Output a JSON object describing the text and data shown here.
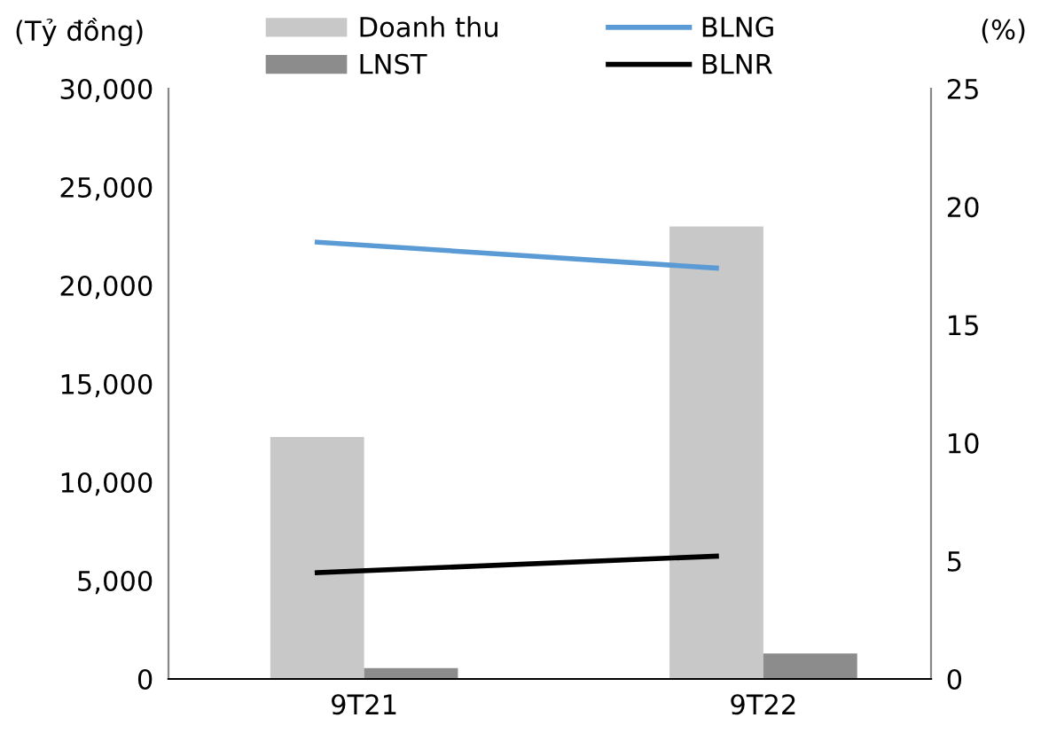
{
  "chart_data": {
    "type": "bar",
    "categories": [
      "9T21",
      "9T22"
    ],
    "ylabel": "(Tỷ đồng)",
    "y2label": "(%)",
    "series": [
      {
        "name": "Doanh thu",
        "color": "#c8c8c8",
        "values": [
          12300,
          23000
        ]
      },
      {
        "name": "LNST",
        "color": "#8c8c8c",
        "values": [
          550,
          1300
        ]
      },
      {
        "name": "BLNG",
        "color": "#5b9bd5",
        "type": "line",
        "axis": "y2",
        "values": [
          18.5,
          17.4
        ]
      },
      {
        "name": "BLNR",
        "color": "#000000",
        "type": "line",
        "axis": "y2",
        "values": [
          4.5,
          5.2
        ]
      }
    ],
    "ylim": [
      0,
      30000
    ],
    "yticks": [
      {
        "value": 0,
        "label": "0"
      },
      {
        "value": 5000,
        "label": "5,000"
      },
      {
        "value": 10000,
        "label": "10,000"
      },
      {
        "value": 15000,
        "label": "15,000"
      },
      {
        "value": 20000,
        "label": "20,000"
      },
      {
        "value": 25000,
        "label": "25,000"
      },
      {
        "value": 30000,
        "label": "30,000"
      }
    ],
    "y2lim": [
      0,
      25
    ],
    "y2ticks": [
      0,
      5,
      10,
      15,
      20,
      25
    ],
    "legend": "top",
    "grid": false,
    "marker": "none",
    "line_style": "solid"
  }
}
